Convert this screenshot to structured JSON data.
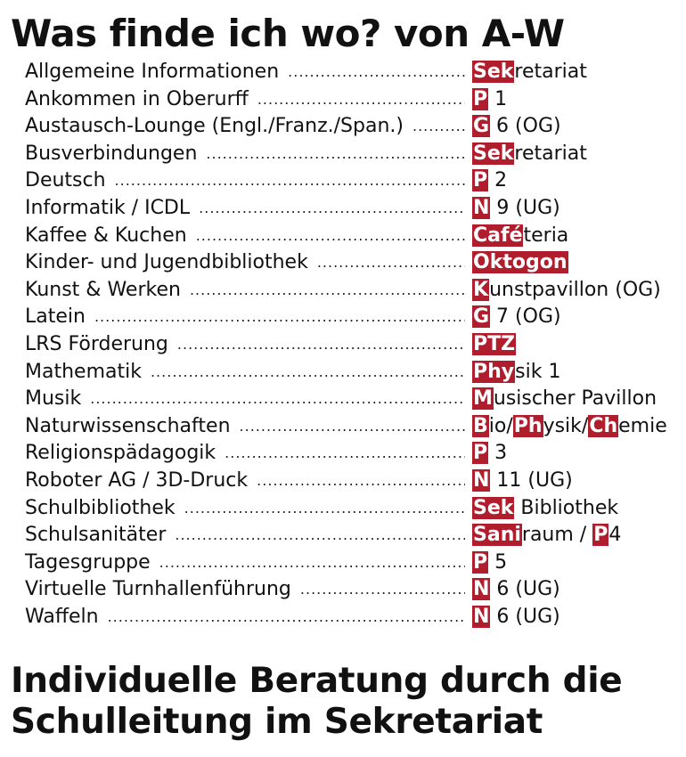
{
  "title": "Was finde ich wo? von A-W",
  "entries": [
    {
      "label": "Allgemeine Informationen",
      "dest": [
        {
          "t": "Sek",
          "h": true
        },
        {
          "t": "retariat",
          "h": false
        }
      ]
    },
    {
      "label": "Ankommen in Oberurff",
      "dest": [
        {
          "t": "P",
          "h": true
        },
        {
          "t": " 1",
          "h": false
        }
      ]
    },
    {
      "label": "Austausch-Lounge (Engl./Franz./Span.)",
      "dest": [
        {
          "t": "G",
          "h": true
        },
        {
          "t": " 6 (OG)",
          "h": false
        }
      ]
    },
    {
      "label": "Busverbindungen",
      "dest": [
        {
          "t": "Sek",
          "h": true
        },
        {
          "t": "retariat",
          "h": false
        }
      ]
    },
    {
      "label": "Deutsch",
      "dest": [
        {
          "t": "P",
          "h": true
        },
        {
          "t": " 2",
          "h": false
        }
      ]
    },
    {
      "label": "Informatik / ICDL",
      "dest": [
        {
          "t": "N",
          "h": true
        },
        {
          "t": " 9 (UG)",
          "h": false
        }
      ]
    },
    {
      "label": "Kaffee & Kuchen",
      "dest": [
        {
          "t": "Café",
          "h": true
        },
        {
          "t": "teria",
          "h": false
        }
      ]
    },
    {
      "label": "Kinder- und Jugendbibliothek",
      "dest": [
        {
          "t": "Oktogon",
          "h": true
        }
      ]
    },
    {
      "label": "Kunst & Werken",
      "dest": [
        {
          "t": "K",
          "h": true
        },
        {
          "t": "unstpavillon (OG)",
          "h": false
        }
      ]
    },
    {
      "label": "Latein",
      "dest": [
        {
          "t": "G",
          "h": true
        },
        {
          "t": " 7 (OG)",
          "h": false
        }
      ]
    },
    {
      "label": "LRS Förderung",
      "dest": [
        {
          "t": "PTZ",
          "h": true
        }
      ]
    },
    {
      "label": "Mathematik",
      "dest": [
        {
          "t": "Phy",
          "h": true
        },
        {
          "t": "sik 1",
          "h": false
        }
      ]
    },
    {
      "label": "Musik",
      "dest": [
        {
          "t": "M",
          "h": true
        },
        {
          "t": "usischer Pavillon",
          "h": false
        }
      ]
    },
    {
      "label": "Naturwissenschaften",
      "dest": [
        {
          "t": "B",
          "h": true
        },
        {
          "t": "io/",
          "h": false
        },
        {
          "t": "Ph",
          "h": true
        },
        {
          "t": "ysik/",
          "h": false
        },
        {
          "t": "Ch",
          "h": true
        },
        {
          "t": "emie",
          "h": false
        }
      ]
    },
    {
      "label": "Religionspädagogik",
      "dest": [
        {
          "t": "P",
          "h": true
        },
        {
          "t": " 3",
          "h": false
        }
      ]
    },
    {
      "label": "Roboter AG / 3D-Druck",
      "dest": [
        {
          "t": "N",
          "h": true
        },
        {
          "t": " 11 (UG)",
          "h": false
        }
      ]
    },
    {
      "label": "Schulbibliothek",
      "dest": [
        {
          "t": "Sek",
          "h": true
        },
        {
          "t": " Bibliothek",
          "h": false
        }
      ]
    },
    {
      "label": "Schulsanitäter",
      "dest": [
        {
          "t": "Sani",
          "h": true
        },
        {
          "t": "raum / ",
          "h": false
        },
        {
          "t": "P",
          "h": true
        },
        {
          "t": "4",
          "h": false
        }
      ]
    },
    {
      "label": "Tagesgruppe",
      "dest": [
        {
          "t": "P",
          "h": true
        },
        {
          "t": " 5",
          "h": false
        }
      ]
    },
    {
      "label": "Virtuelle Turnhallenführung",
      "dest": [
        {
          "t": "N",
          "h": true
        },
        {
          "t": " 6 (UG)",
          "h": false
        }
      ]
    },
    {
      "label": "Waffeln",
      "dest": [
        {
          "t": "N",
          "h": true
        },
        {
          "t": " 6 (UG)",
          "h": false
        }
      ]
    }
  ],
  "footer": "Individuelle Beratung durch die Schulleitung im Sekretariat",
  "colors": {
    "highlight": "#b01e2e",
    "text": "#111111",
    "background": "#ffffff"
  }
}
